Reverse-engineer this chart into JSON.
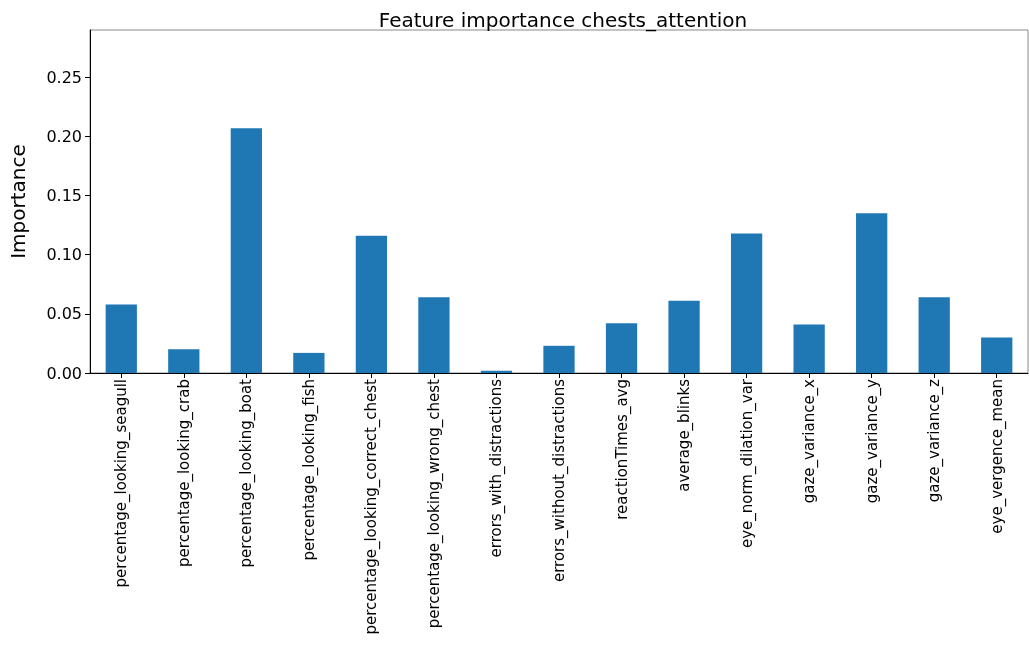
{
  "chart_data": {
    "type": "bar",
    "title": "Feature importance chests_attention",
    "ylabel": "Importance",
    "categories": [
      "percentage_looking_seagull",
      "percentage_looking_crab",
      "percentage_looking_boat",
      "percentage_looking_fish",
      "percentage_looking_correct_chest",
      "percentage_looking_wrong_chest",
      "errors_with_distractions",
      "errors_without_distractions",
      "reactionTimes_avg",
      "average_blinks",
      "eye_norm_dilation_var",
      "gaze_variance_x",
      "gaze_variance_y",
      "gaze_variance_z",
      "eye_vergence_mean"
    ],
    "values": [
      0.058,
      0.02,
      0.207,
      0.017,
      0.116,
      0.064,
      0.002,
      0.023,
      0.042,
      0.061,
      0.118,
      0.041,
      0.135,
      0.064,
      0.03
    ],
    "color": "#1f77b4",
    "ylim": [
      0,
      0.29
    ],
    "yticks": [
      {
        "value": 0,
        "label": "0.00"
      },
      {
        "value": 0.05,
        "label": "0.05"
      },
      {
        "value": 0.1,
        "label": "0.10"
      },
      {
        "value": 0.15,
        "label": "0.15"
      },
      {
        "value": 0.2,
        "label": "0.20"
      },
      {
        "value": 0.25,
        "label": "0.25"
      }
    ],
    "grid": false
  }
}
